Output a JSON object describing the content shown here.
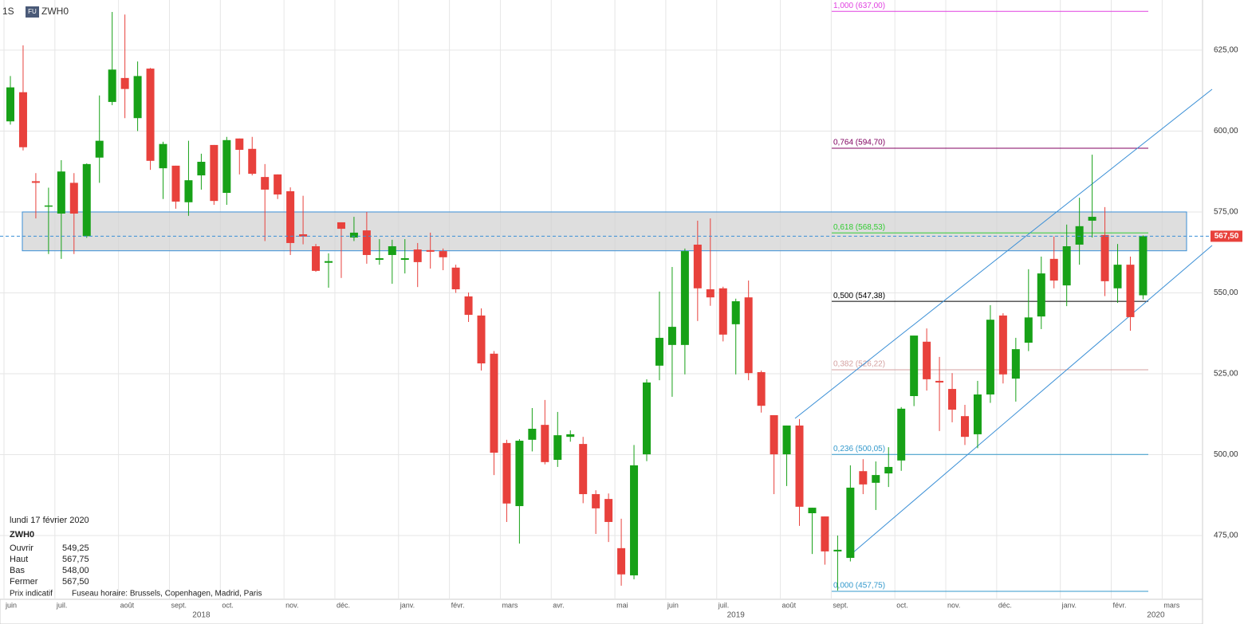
{
  "header": {
    "interval": "1S",
    "badge": "FU",
    "symbol": "ZWH0"
  },
  "info": {
    "date": "lundi 17 février 2020",
    "symbol": "ZWH0",
    "rows": [
      [
        "Ouvrir",
        "549,25"
      ],
      [
        "Haut",
        "567,75"
      ],
      [
        "Bas",
        "548,00"
      ],
      [
        "Fermer",
        "567,50"
      ]
    ],
    "note": "Prix indicatif",
    "timezone": "Fuseau horaire: Brussels, Copenhagen, Madrid, Paris"
  },
  "chart_data": {
    "type": "candlestick",
    "categories": [
      "juin",
      null,
      null,
      null,
      "juil.",
      null,
      null,
      null,
      null,
      "août",
      null,
      null,
      null,
      "sept.",
      null,
      null,
      null,
      "oct.",
      null,
      null,
      null,
      null,
      "nov.",
      null,
      null,
      null,
      "déc.",
      null,
      null,
      null,
      null,
      "janv.",
      null,
      null,
      null,
      "févr.",
      null,
      null,
      null,
      "mars",
      null,
      null,
      null,
      "avr.",
      null,
      null,
      null,
      null,
      "mai",
      null,
      null,
      null,
      "juin",
      null,
      null,
      null,
      "juil.",
      null,
      null,
      null,
      null,
      "août",
      null,
      null,
      null,
      "sept.",
      null,
      null,
      null,
      null,
      "oct.",
      null,
      null,
      null,
      "nov.",
      null,
      null,
      null,
      "déc.",
      null,
      null,
      null,
      null,
      "janv.",
      null,
      null,
      null,
      "févr.",
      null,
      null,
      null,
      "mars",
      null
    ],
    "years": [
      null,
      null,
      null,
      null,
      null,
      null,
      null,
      null,
      null,
      null,
      null,
      null,
      null,
      null,
      null,
      "2018",
      null,
      null,
      null,
      null,
      null,
      null,
      null,
      null,
      null,
      null,
      null,
      null,
      null,
      null,
      null,
      null,
      null,
      null,
      null,
      null,
      null,
      null,
      null,
      null,
      null,
      null,
      null,
      null,
      null,
      null,
      null,
      null,
      null,
      null,
      null,
      null,
      null,
      null,
      null,
      null,
      null,
      "2019",
      null,
      null,
      null,
      null,
      null,
      null,
      null,
      null,
      null,
      null,
      null,
      null,
      null,
      null,
      null,
      null,
      null,
      null,
      null,
      null,
      null,
      null,
      null,
      null,
      null,
      null,
      null,
      null,
      null,
      null,
      null,
      null,
      "2020",
      null,
      null
    ],
    "open": [
      603,
      612,
      584.5,
      577,
      574.5,
      584,
      567.5,
      591.8,
      609,
      616.4,
      604,
      619.3,
      588.5,
      589.3,
      578,
      586.3,
      595.7,
      580.9,
      597.7,
      594.5,
      585.8,
      586.6,
      581.4,
      568.1,
      564.4,
      559.3,
      571.8,
      567.1,
      569.3,
      560.2,
      561.7,
      560.2,
      563.4,
      563.2,
      562.9,
      557.8,
      548.9,
      543,
      531.2,
      503.6,
      484.1,
      504.6,
      509.2,
      498.4,
      505.5,
      503.3,
      487.8,
      486.3,
      471.1,
      462.7,
      500.1,
      527.5,
      533.9,
      533.9,
      564.9,
      551.1,
      551.4,
      540.3,
      548.6,
      525.5,
      512.2,
      500.1,
      509,
      481.9,
      480.9,
      470.1,
      468.1,
      494.9,
      491.3,
      494.2,
      498.2,
      518.1,
      534.9,
      522.8,
      520.3,
      511.9,
      506.3,
      518.6,
      543,
      523.5,
      534.6,
      542.7,
      560.5,
      552.3,
      564.9,
      572.3,
      567.9,
      551.4,
      558.7,
      549.25,
      null,
      null,
      null
    ],
    "high": [
      617,
      626.5,
      587,
      582.5,
      591,
      587,
      590,
      611,
      636.8,
      636,
      621.5,
      619.5,
      596.7,
      589.3,
      597,
      593,
      595.7,
      598.2,
      597.7,
      598.2,
      589.8,
      586.6,
      582.6,
      580,
      565.1,
      562.2,
      571.8,
      573.5,
      575,
      566.6,
      566.4,
      566.6,
      565.4,
      568.6,
      563.7,
      558.7,
      550.1,
      545.2,
      532,
      504.6,
      504.8,
      514.4,
      516.9,
      513.2,
      507.5,
      505.5,
      489,
      488,
      480.2,
      503,
      523.3,
      550.4,
      558,
      563.7,
      572.3,
      573,
      551.9,
      548.2,
      553.8,
      526,
      512.2,
      509,
      511,
      483.6,
      480.9,
      475,
      496.7,
      498.6,
      497.9,
      502.3,
      514.7,
      536.8,
      539,
      530.2,
      525.2,
      515.4,
      522.8,
      546.2,
      543.7,
      536.1,
      557.3,
      561.2,
      567.4,
      571.1,
      579.4,
      592.7,
      576.5,
      565.1,
      561.2,
      567.75,
      null,
      null,
      null
    ],
    "low": [
      602,
      594,
      573,
      562,
      560.5,
      562,
      567,
      584,
      608,
      604,
      600,
      588,
      579,
      576,
      573.8,
      581.9,
      577.2,
      577.2,
      586.6,
      586.3,
      566,
      579,
      561.7,
      565,
      556.5,
      551.6,
      554.6,
      566,
      559,
      558.7,
      552.8,
      556,
      551.8,
      557.5,
      557,
      550,
      541,
      526,
      493.7,
      479.2,
      472.5,
      501,
      497,
      496.2,
      504,
      485,
      475.5,
      473,
      459.5,
      461.5,
      498,
      523,
      517.9,
      524.8,
      541.3,
      546,
      535,
      524.8,
      523,
      513,
      487.8,
      490.3,
      478,
      469.3,
      466,
      458,
      467,
      487.8,
      482.9,
      490,
      495,
      515,
      519.8,
      507.3,
      510,
      503,
      502,
      516,
      522,
      516.4,
      532,
      538.8,
      551.4,
      545.9,
      558.7,
      567.1,
      549,
      546.9,
      538.3,
      548,
      null,
      null,
      null
    ],
    "close": [
      613.5,
      595,
      584,
      577,
      587.5,
      574.5,
      589.8,
      597,
      619,
      613,
      617,
      590.8,
      596,
      578.2,
      584.8,
      590.5,
      578.4,
      597.2,
      594.2,
      586.8,
      581.9,
      580.4,
      565.4,
      567.4,
      556.8,
      559.8,
      569.8,
      568.6,
      561.7,
      560.7,
      564.4,
      560.7,
      559.5,
      562.7,
      561,
      551.1,
      543.2,
      528.2,
      500.6,
      484.9,
      504.3,
      508,
      497.7,
      506,
      506.3,
      487.8,
      483.4,
      479.2,
      463,
      496.7,
      522.3,
      536.1,
      539.5,
      562.9,
      551.4,
      548.6,
      537.1,
      547.4,
      525.2,
      515.1,
      500.1,
      509,
      483.9,
      483.6,
      470.1,
      470.6,
      489.8,
      490.8,
      493.7,
      496.2,
      514.2,
      536.8,
      523.3,
      522.3,
      513.9,
      505.5,
      518.6,
      541.7,
      524.8,
      532.6,
      542.4,
      556,
      553.8,
      564.4,
      570.6,
      573.5,
      553.6,
      558.7,
      542.5,
      567.5,
      null,
      null,
      null
    ],
    "up_color": "#17a117",
    "down_color": "#e8413c",
    "ylim": [
      455.3,
      640.5
    ],
    "yticks": [
      {
        "value": 475,
        "label": "475,00"
      },
      {
        "value": 500,
        "label": "500,00"
      },
      {
        "value": 525,
        "label": "525,00"
      },
      {
        "value": 550,
        "label": "550,00"
      },
      {
        "value": 575,
        "label": "575,00"
      },
      {
        "value": 600,
        "label": "600,00"
      },
      {
        "value": 625,
        "label": "625,00"
      }
    ],
    "grid": true,
    "zone": {
      "low": 563,
      "high": 575
    },
    "fib_levels": [
      {
        "value": 637,
        "label": "1,000 (637,00)",
        "color": "#e040e0"
      },
      {
        "value": 594.7,
        "label": "0,764 (594,70)",
        "color": "#800060"
      },
      {
        "value": 568.53,
        "label": "0,618 (568,53)",
        "color": "#33cc33"
      },
      {
        "value": 547.38,
        "label": "0,500 (547,38)",
        "color": "#000000"
      },
      {
        "value": 526.22,
        "label": "0,382 (526,22)",
        "color": "#d4a0a0"
      },
      {
        "value": 500.05,
        "label": "0,236 (500,05)",
        "color": "#3399cc"
      },
      {
        "value": 457.75,
        "label": "0,000 (457,75)",
        "color": "#3399cc"
      }
    ],
    "last_price": {
      "value": 567.5,
      "label": "567,50"
    }
  }
}
